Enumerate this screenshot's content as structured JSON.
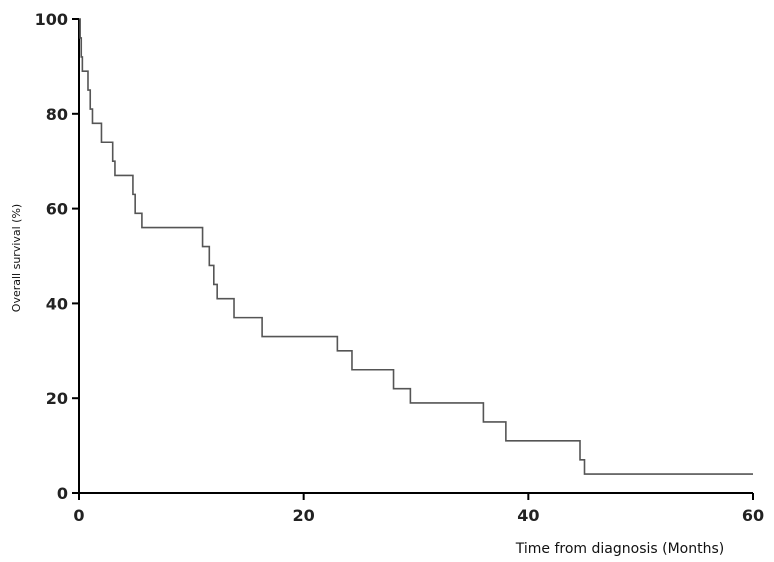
{
  "chart_data": {
    "type": "line",
    "step": true,
    "title": "",
    "xlabel": "Time from diagnosis (Months)",
    "ylabel": "Overall survival (%)",
    "xlim": [
      0,
      60
    ],
    "ylim": [
      0,
      100
    ],
    "x_ticks": [
      "0",
      "20",
      "40",
      "60"
    ],
    "y_ticks": [
      "0",
      "20",
      "40",
      "60",
      "80",
      "100"
    ],
    "grid": false,
    "line_color": "#555555",
    "series": [
      {
        "points": [
          [
            0,
            100
          ],
          [
            0.1,
            96
          ],
          [
            0.2,
            92
          ],
          [
            0.3,
            89
          ],
          [
            0.8,
            85
          ],
          [
            1,
            81
          ],
          [
            1.2,
            78
          ],
          [
            2,
            74
          ],
          [
            3,
            70
          ],
          [
            3.2,
            67
          ],
          [
            4.8,
            63
          ],
          [
            5,
            59
          ],
          [
            5.6,
            56
          ],
          [
            11,
            52
          ],
          [
            11.6,
            48
          ],
          [
            12,
            44
          ],
          [
            12.3,
            41
          ],
          [
            13.8,
            37
          ],
          [
            16.3,
            33
          ],
          [
            23,
            30
          ],
          [
            24.3,
            26
          ],
          [
            28,
            22
          ],
          [
            29.5,
            19
          ],
          [
            36,
            15
          ],
          [
            38,
            11
          ],
          [
            44.6,
            7
          ],
          [
            45,
            4
          ],
          [
            60,
            4
          ]
        ]
      }
    ]
  }
}
